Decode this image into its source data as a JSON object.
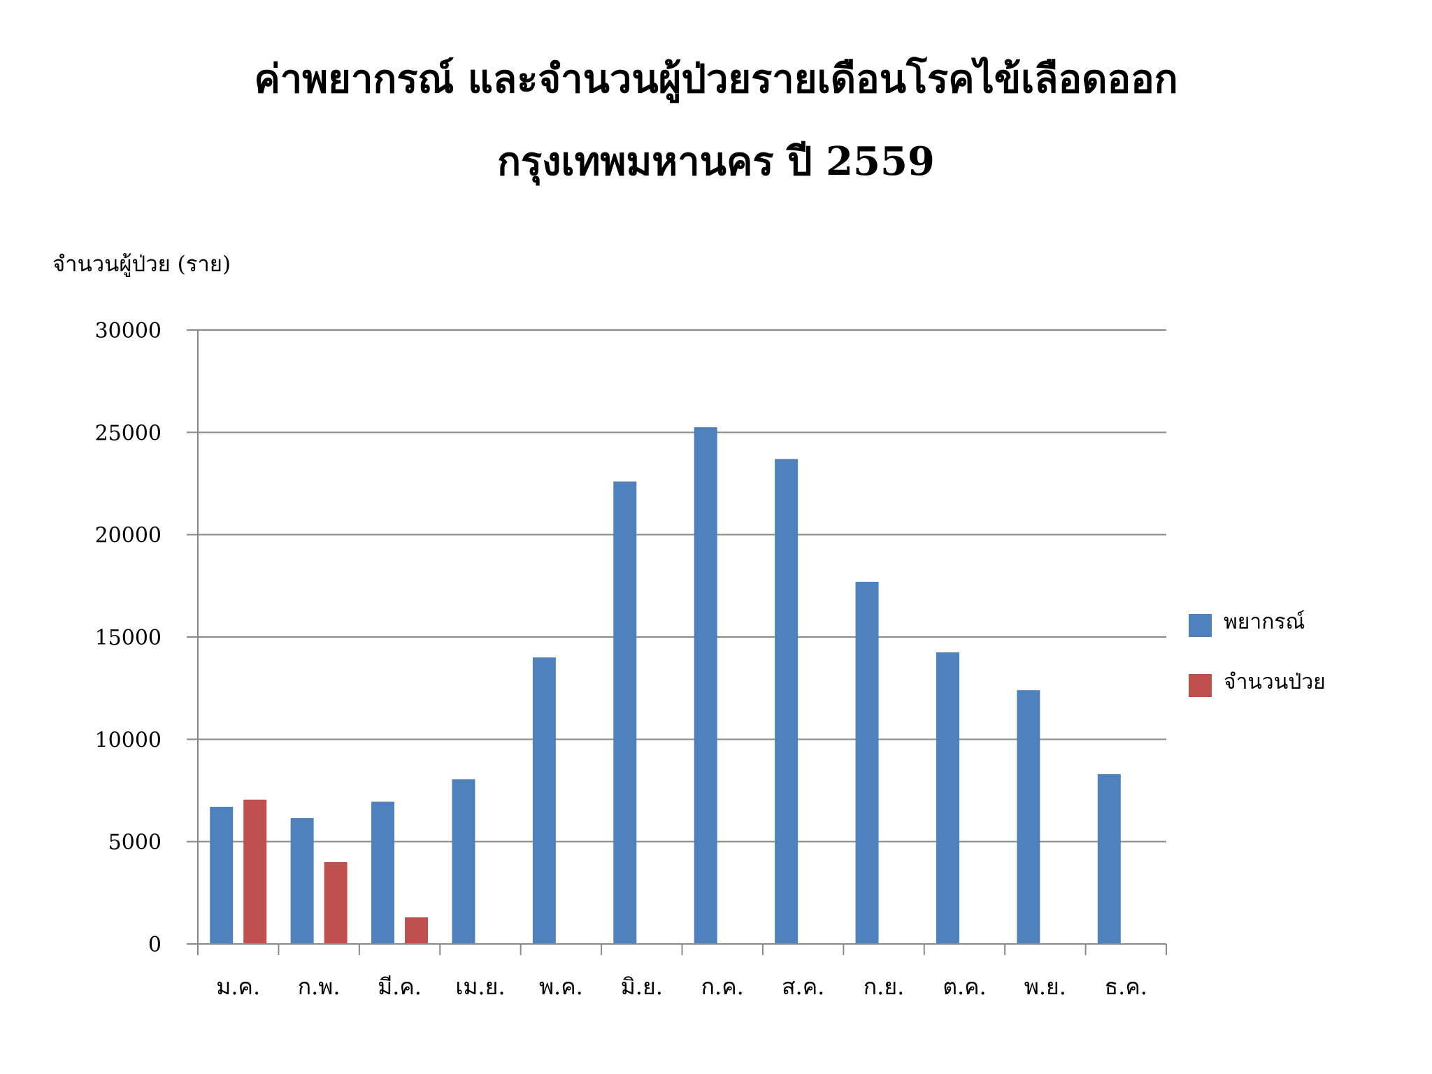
{
  "title": {
    "line1": "ค่าพยากรณ์ และจำนวนผู้ป่วยรายเดือนโรคไข้เลือดออก",
    "line2": "กรุงเทพมหานคร ปี 2559"
  },
  "chart_data": {
    "type": "bar",
    "title": "ค่าพยากรณ์ และจำนวนผู้ป่วยรายเดือนโรคไข้เลือดออก กรุงเทพมหานคร ปี 2559",
    "xlabel": "",
    "ylabel": "จำนวนผู้ป่วย (ราย)",
    "ylim": [
      0,
      30000
    ],
    "yticks": [
      0,
      5000,
      10000,
      15000,
      20000,
      25000,
      30000
    ],
    "grid": "horizontal",
    "legend_position": "right",
    "categories": [
      "ม.ค.",
      "ก.พ.",
      "มี.ค.",
      "เม.ย.",
      "พ.ค.",
      "มิ.ย.",
      "ก.ค.",
      "ส.ค.",
      "ก.ย.",
      "ต.ค.",
      "พ.ย.",
      "ธ.ค."
    ],
    "series": [
      {
        "name": "พยากรณ์",
        "color": "#4F81BD",
        "values": [
          6700,
          6150,
          6950,
          8050,
          14000,
          22600,
          25250,
          23700,
          17700,
          14250,
          12400,
          8300
        ]
      },
      {
        "name": "จำนวนป่วย",
        "color": "#C0504D",
        "values": [
          7050,
          4000,
          1300,
          null,
          null,
          null,
          null,
          null,
          null,
          null,
          null,
          null
        ]
      }
    ]
  }
}
